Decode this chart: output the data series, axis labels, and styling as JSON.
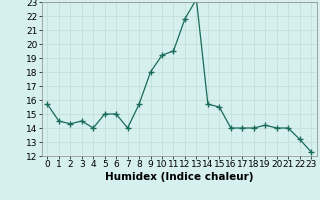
{
  "x": [
    0,
    1,
    2,
    3,
    4,
    5,
    6,
    7,
    8,
    9,
    10,
    11,
    12,
    13,
    14,
    15,
    16,
    17,
    18,
    19,
    20,
    21,
    22,
    23
  ],
  "y": [
    15.7,
    14.5,
    14.3,
    14.5,
    14.0,
    15.0,
    15.0,
    14.0,
    15.7,
    18.0,
    19.2,
    19.5,
    21.8,
    23.2,
    15.7,
    15.5,
    14.0,
    14.0,
    14.0,
    14.2,
    14.0,
    14.0,
    13.2,
    12.3
  ],
  "xlabel": "Humidex (Indice chaleur)",
  "xlim": [
    -0.5,
    23.5
  ],
  "ylim": [
    12,
    23
  ],
  "yticks": [
    12,
    13,
    14,
    15,
    16,
    17,
    18,
    19,
    20,
    21,
    22,
    23
  ],
  "xticks": [
    0,
    1,
    2,
    3,
    4,
    5,
    6,
    7,
    8,
    9,
    10,
    11,
    12,
    13,
    14,
    15,
    16,
    17,
    18,
    19,
    20,
    21,
    22,
    23
  ],
  "line_color": "#1a6b5a",
  "marker_color": "#1a6b5a",
  "bg_color": "#d6f0ef",
  "grid_color": "#c0dbd8",
  "label_fontsize": 7.5,
  "tick_fontsize": 6.5
}
